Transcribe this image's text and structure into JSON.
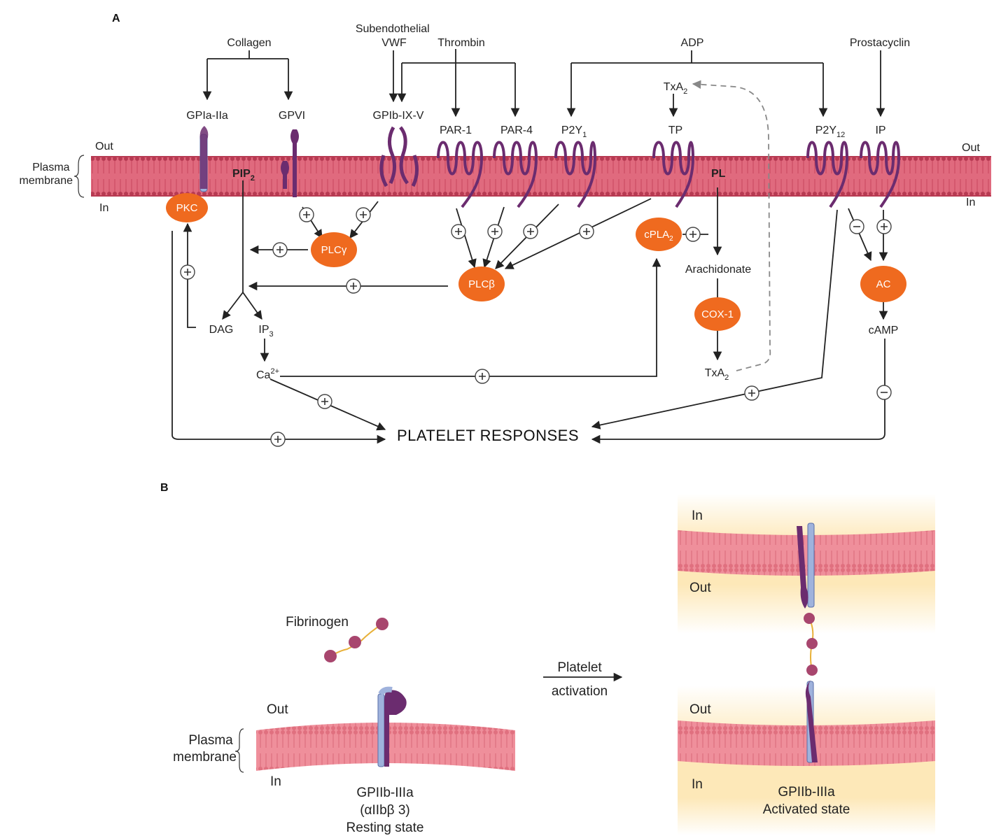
{
  "panel_a": {
    "label": "A",
    "ligands": {
      "collagen": "Collagen",
      "vwf": "Subendothelial\nVWF",
      "thrombin": "Thrombin",
      "adp": "ADP",
      "prostacyclin": "Prostacyclin",
      "txa2_top": "TxA2"
    },
    "receptors": {
      "gpia_iia": "GPIa-IIa",
      "gpvi": "GPVI",
      "gpib_ix_v": "GPIb-IX-V",
      "par1": "PAR-1",
      "par4": "PAR-4",
      "p2y1": "P2Y1",
      "tp": "TP",
      "p2y12": "P2Y12",
      "ip": "IP"
    },
    "membrane": {
      "out_left": "Out",
      "out_right": "Out",
      "in_left": "In",
      "in_right": "In",
      "plasma_membrane": "Plasma\nmembrane",
      "pip2": "PIP2",
      "pl": "PL"
    },
    "enzymes": {
      "pkc": "PKC",
      "plc_gamma": "PLCγ",
      "plc_beta": "PLCβ",
      "cpla2": "cPLA2",
      "cox1": "COX-1",
      "ac": "AC"
    },
    "messengers": {
      "dag": "DAG",
      "ip3": "IP3",
      "ca2": "Ca2+",
      "arachidonate": "Arachidonate",
      "txa2_bottom": "TxA2",
      "camp": "cAMP"
    },
    "responses": "PLATELET RESPONSES"
  },
  "panel_b": {
    "label": "B",
    "fibrinogen": "Fibrinogen",
    "out_left": "Out",
    "in_left": "In",
    "plasma_membrane": "Plasma\nmembrane",
    "resting": {
      "name": "GPIIb-IIIa",
      "alias": "(αIIbβ 3)",
      "state": "Resting state"
    },
    "activation": "Platelet\nactivation",
    "right_top_in": "In",
    "right_top_out": "Out",
    "right_bottom_out": "Out",
    "right_bottom_in": "In",
    "activated": {
      "name": "GPIIb-IIIa",
      "state": "Activated state"
    }
  },
  "colors": {
    "membrane": "#e06a7e",
    "membrane_dark": "#b73a52",
    "enzyme": "#ef6a1f",
    "receptor": "#6b2c6f",
    "integrin_blue": "#9fb2dc",
    "glow": "#fde8b8"
  }
}
